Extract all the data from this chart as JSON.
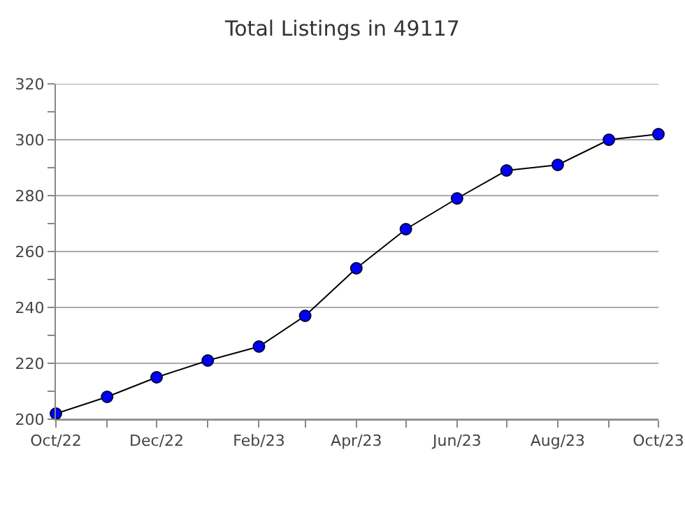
{
  "chart_data": {
    "type": "line",
    "title": "Total Listings in 49117",
    "x": [
      "2022-10",
      "2022-11",
      "2022-12",
      "2023-01",
      "2023-02",
      "2023-03",
      "2023-04",
      "2023-05",
      "2023-06",
      "2023-07",
      "2023-08",
      "2023-09",
      "2023-10"
    ],
    "series": [
      {
        "color": "#0000ff",
        "values": [
          202,
          208,
          215,
          221,
          226,
          237,
          254,
          268,
          279,
          289,
          291,
          300,
          302
        ]
      }
    ],
    "xlim": [
      "2022-10",
      "2023-10"
    ],
    "xticks": [
      {
        "value": "2022-10",
        "label": "Oct/22"
      },
      {
        "value": "2022-11",
        "label": null
      },
      {
        "value": "2022-12",
        "label": "Dec/22"
      },
      {
        "value": "2023-01",
        "label": null
      },
      {
        "value": "2023-02",
        "label": "Feb/23"
      },
      {
        "value": "2023-03",
        "label": null
      },
      {
        "value": "2023-04",
        "label": "Apr/23"
      },
      {
        "value": "2023-05",
        "label": null
      },
      {
        "value": "2023-06",
        "label": "Jun/23"
      },
      {
        "value": "2023-07",
        "label": null
      },
      {
        "value": "2023-08",
        "label": "Aug/23"
      },
      {
        "value": "2023-09",
        "label": null
      },
      {
        "value": "2023-10",
        "label": "Oct/23"
      }
    ],
    "ylim": [
      200,
      320
    ],
    "yticks": [
      200,
      {
        "value": 210,
        "label": null
      },
      220,
      {
        "value": 230,
        "label": null
      },
      240,
      {
        "value": 250,
        "label": null
      },
      260,
      {
        "value": 270,
        "label": null
      },
      280,
      {
        "value": 290,
        "label": null
      },
      300,
      {
        "value": 310,
        "label": null
      },
      320
    ],
    "grid": "y",
    "marker": "circle",
    "line_style": "solid"
  }
}
